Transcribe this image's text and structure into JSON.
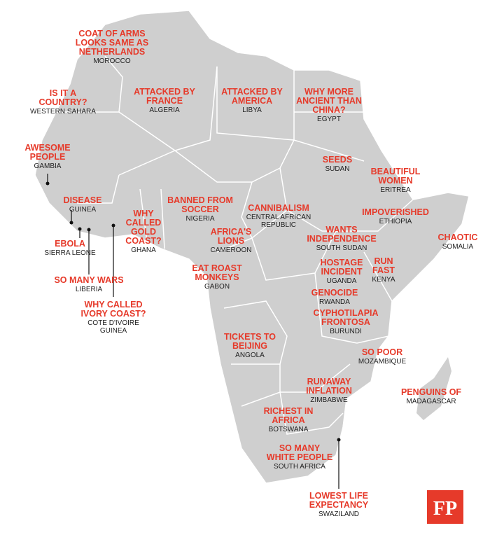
{
  "logo": "FP",
  "labels": [
    {
      "phrase": [
        "COAT OF ARMS",
        "LOOKS SAME AS",
        "NETHERLANDS"
      ],
      "country": [
        "MOROCCO"
      ]
    },
    {
      "phrase": [
        "IS IT A",
        "COUNTRY?"
      ],
      "country": [
        "WESTERN SAHARA"
      ]
    },
    {
      "phrase": [
        "ATTACKED BY",
        "FRANCE"
      ],
      "country": [
        "ALGERIA"
      ]
    },
    {
      "phrase": [
        "ATTACKED BY",
        "AMERICA"
      ],
      "country": [
        "LIBYA"
      ]
    },
    {
      "phrase": [
        "WHY MORE",
        "ANCIENT THAN",
        "CHINA?"
      ],
      "country": [
        "EGYPT"
      ]
    },
    {
      "phrase": [
        "AWESOME",
        "PEOPLE"
      ],
      "country": [
        "GAMBIA"
      ]
    },
    {
      "phrase": [
        "SEEDS"
      ],
      "country": [
        "SUDAN"
      ]
    },
    {
      "phrase": [
        "BEAUTIFUL",
        "WOMEN"
      ],
      "country": [
        "ERITREA"
      ]
    },
    {
      "phrase": [
        "DISEASE"
      ],
      "country": [
        "GUINEA"
      ]
    },
    {
      "phrase": [
        "WHY",
        "CALLED",
        "GOLD",
        "COAST?"
      ],
      "country": [
        "GHANA"
      ]
    },
    {
      "phrase": [
        "BANNED FROM",
        "SOCCER"
      ],
      "country": [
        "NIGERIA"
      ]
    },
    {
      "phrase": [
        "CANNIBALISM"
      ],
      "country": [
        "CENTRAL AFRICAN",
        "REPUBLIC"
      ]
    },
    {
      "phrase": [
        "IMPOVERISHED"
      ],
      "country": [
        "ETHIOPIA"
      ]
    },
    {
      "phrase": [
        "WANTS",
        "INDEPENDENCE"
      ],
      "country": [
        "SOUTH SUDAN"
      ]
    },
    {
      "phrase": [
        "CHAOTIC"
      ],
      "country": [
        "SOMALIA"
      ]
    },
    {
      "phrase": [
        "AFRICA'S",
        "LIONS"
      ],
      "country": [
        "CAMEROON"
      ]
    },
    {
      "phrase": [
        "EBOLA"
      ],
      "country": [
        "SIERRA LEONE"
      ]
    },
    {
      "phrase": [
        "EAT ROAST",
        "MONKEYS"
      ],
      "country": [
        "GABON"
      ]
    },
    {
      "phrase": [
        "HOSTAGE",
        "INCIDENT"
      ],
      "country": [
        "UGANDA"
      ]
    },
    {
      "phrase": [
        "RUN",
        "FAST"
      ],
      "country": [
        "KENYA"
      ]
    },
    {
      "phrase": [
        "SO MANY WARS"
      ],
      "country": [
        "LIBERIA"
      ]
    },
    {
      "phrase": [
        "GENOCIDE"
      ],
      "country": [
        "RWANDA"
      ]
    },
    {
      "phrase": [
        "WHY CALLED",
        "IVORY COAST?"
      ],
      "country": [
        "COTE D'IVOIRE",
        "GUINEA"
      ]
    },
    {
      "phrase": [
        "CYPHOTILAPIA",
        "FRONTOSA"
      ],
      "country": [
        "BURUNDI"
      ]
    },
    {
      "phrase": [
        "TICKETS TO",
        "BEIJING"
      ],
      "country": [
        "ANGOLA"
      ]
    },
    {
      "phrase": [
        "SO POOR"
      ],
      "country": [
        "MOZAMBIQUE"
      ]
    },
    {
      "phrase": [
        "RUNAWAY",
        "INFLATION"
      ],
      "country": [
        "ZIMBABWE"
      ]
    },
    {
      "phrase": [
        "PENGUINS OF"
      ],
      "country": [
        "MADAGASCAR"
      ]
    },
    {
      "phrase": [
        "RICHEST IN",
        "AFRICA"
      ],
      "country": [
        "BOTSWANA"
      ]
    },
    {
      "phrase": [
        "SO MANY",
        "WHITE PEOPLE"
      ],
      "country": [
        "SOUTH AFRICA"
      ]
    },
    {
      "phrase": [
        "LOWEST LIFE",
        "EXPECTANCY"
      ],
      "country": [
        "SWAZILAND"
      ]
    }
  ]
}
